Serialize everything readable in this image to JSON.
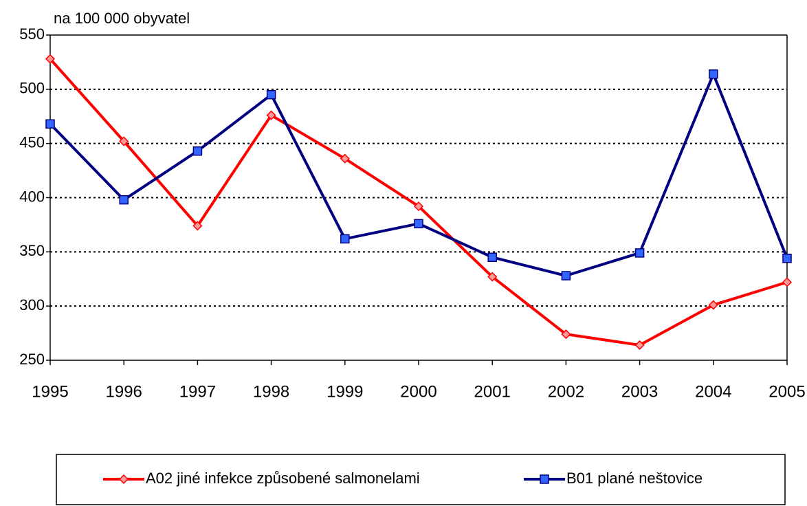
{
  "chart_data": {
    "type": "line",
    "y_label": "na 100 000 obyvatel",
    "categories": [
      "1995",
      "1996",
      "1997",
      "1998",
      "1999",
      "2000",
      "2001",
      "2002",
      "2003",
      "2004",
      "2005"
    ],
    "series": [
      {
        "name": "A02 jiné infekce způsobené salmonelami",
        "color": "#ff0000",
        "marker": "diamond",
        "values": [
          528,
          452,
          374,
          476,
          436,
          392,
          327,
          274,
          264,
          301,
          322
        ]
      },
      {
        "name": "B01 plané neštovice",
        "color": "#000080",
        "marker": "square",
        "values": [
          468,
          398,
          443,
          495,
          362,
          376,
          345,
          328,
          349,
          514,
          344
        ]
      }
    ],
    "ylim": [
      250,
      550
    ],
    "yticks": [
      250,
      300,
      350,
      400,
      450,
      500,
      550
    ],
    "grid": true,
    "legend": "bottom"
  }
}
